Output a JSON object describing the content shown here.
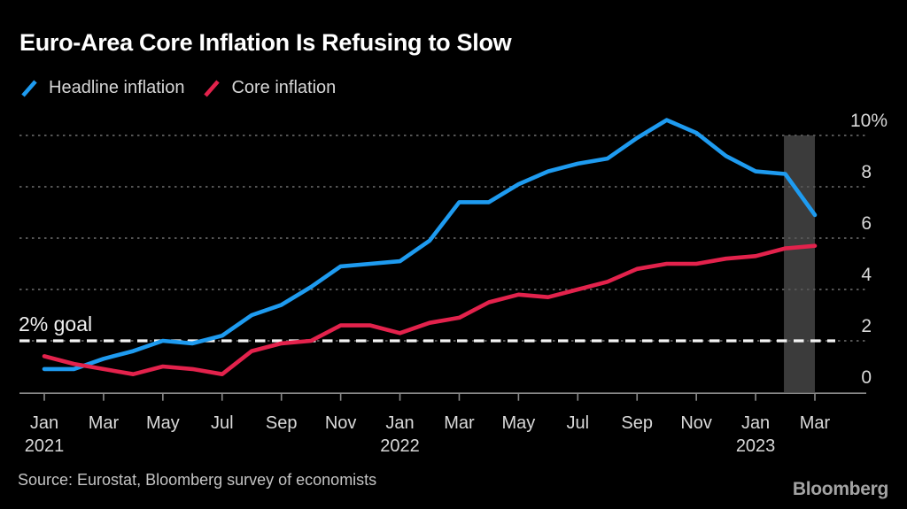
{
  "header": {
    "title": "Euro-Area Core Inflation Is Refusing to Slow",
    "legend": [
      {
        "label": "Headline inflation",
        "color": "#1e9bf0"
      },
      {
        "label": "Core inflation",
        "color": "#e3224c"
      }
    ]
  },
  "footer": {
    "source": "Source: Eurostat, Bloomberg survey of economists",
    "logo": "Bloomberg"
  },
  "colors": {
    "background": "#000000",
    "headline_line": "#1e9bf0",
    "core_line": "#e3224c",
    "gridline": "#555555",
    "goal_line": "#f4f4f4",
    "axis": "#8a8a8a",
    "tick_label": "#d9d9d9",
    "highlight_band": "#3b3b3b"
  },
  "chart_data": {
    "type": "line",
    "title": "Euro-Area Core Inflation Is Refusing to Slow",
    "x": [
      "Jan 2021",
      "Feb 2021",
      "Mar 2021",
      "Apr 2021",
      "May 2021",
      "Jun 2021",
      "Jul 2021",
      "Aug 2021",
      "Sep 2021",
      "Oct 2021",
      "Nov 2021",
      "Dec 2021",
      "Jan 2022",
      "Feb 2022",
      "Mar 2022",
      "Apr 2022",
      "May 2022",
      "Jun 2022",
      "Jul 2022",
      "Aug 2022",
      "Sep 2022",
      "Oct 2022",
      "Nov 2022",
      "Dec 2022",
      "Jan 2023",
      "Feb 2023",
      "Mar 2023"
    ],
    "series": [
      {
        "name": "Headline inflation",
        "color": "#1e9bf0",
        "values": [
          0.9,
          0.9,
          1.3,
          1.6,
          2.0,
          1.9,
          2.2,
          3.0,
          3.4,
          4.1,
          4.9,
          5.0,
          5.1,
          5.9,
          7.4,
          7.4,
          8.1,
          8.6,
          8.9,
          9.1,
          9.9,
          10.6,
          10.1,
          9.2,
          8.6,
          8.5,
          6.9
        ]
      },
      {
        "name": "Core inflation",
        "color": "#e3224c",
        "values": [
          1.4,
          1.1,
          0.9,
          0.7,
          1.0,
          0.9,
          0.7,
          1.6,
          1.9,
          2.0,
          2.6,
          2.6,
          2.3,
          2.7,
          2.9,
          3.5,
          3.8,
          3.7,
          4.0,
          4.3,
          4.8,
          5.0,
          5.0,
          5.2,
          5.3,
          5.6,
          5.7
        ]
      }
    ],
    "y_ticks": [
      0,
      2,
      4,
      6,
      8,
      10
    ],
    "y_top_suffix": "%",
    "ylim": [
      0,
      10.9
    ],
    "x_tick_every": 2,
    "year_labels": [
      "2021",
      "2022",
      "2023"
    ],
    "goal_line": {
      "value": 2,
      "label": "2% goal"
    },
    "highlight_band": {
      "start_index": 25,
      "end_index": 26
    },
    "grid": "horizontal-dotted",
    "legend_position": "top-left",
    "xlabel": "",
    "ylabel": ""
  }
}
